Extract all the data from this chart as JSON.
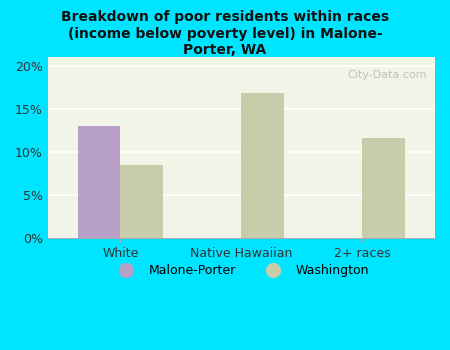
{
  "title": "Breakdown of poor residents within races\n(income below poverty level) in Malone-\nPorter, WA",
  "categories": [
    "White",
    "Native Hawaiian",
    "2+ races"
  ],
  "malone_porter_values": [
    13.0,
    null,
    null
  ],
  "washington_values": [
    8.5,
    16.8,
    11.6
  ],
  "malone_porter_color": "#b89fc8",
  "washington_color": "#c8ccaa",
  "background_color": "#00e5ff",
  "plot_bg_color": "#f0f5e8",
  "ylim": [
    0,
    21
  ],
  "yticks": [
    0,
    5,
    10,
    15,
    20
  ],
  "ytick_labels": [
    "0%",
    "5%",
    "10%",
    "15%",
    "20%"
  ],
  "bar_width": 0.35,
  "legend_malone": "Malone-Porter",
  "legend_washington": "Washington",
  "watermark": "City-Data.com"
}
